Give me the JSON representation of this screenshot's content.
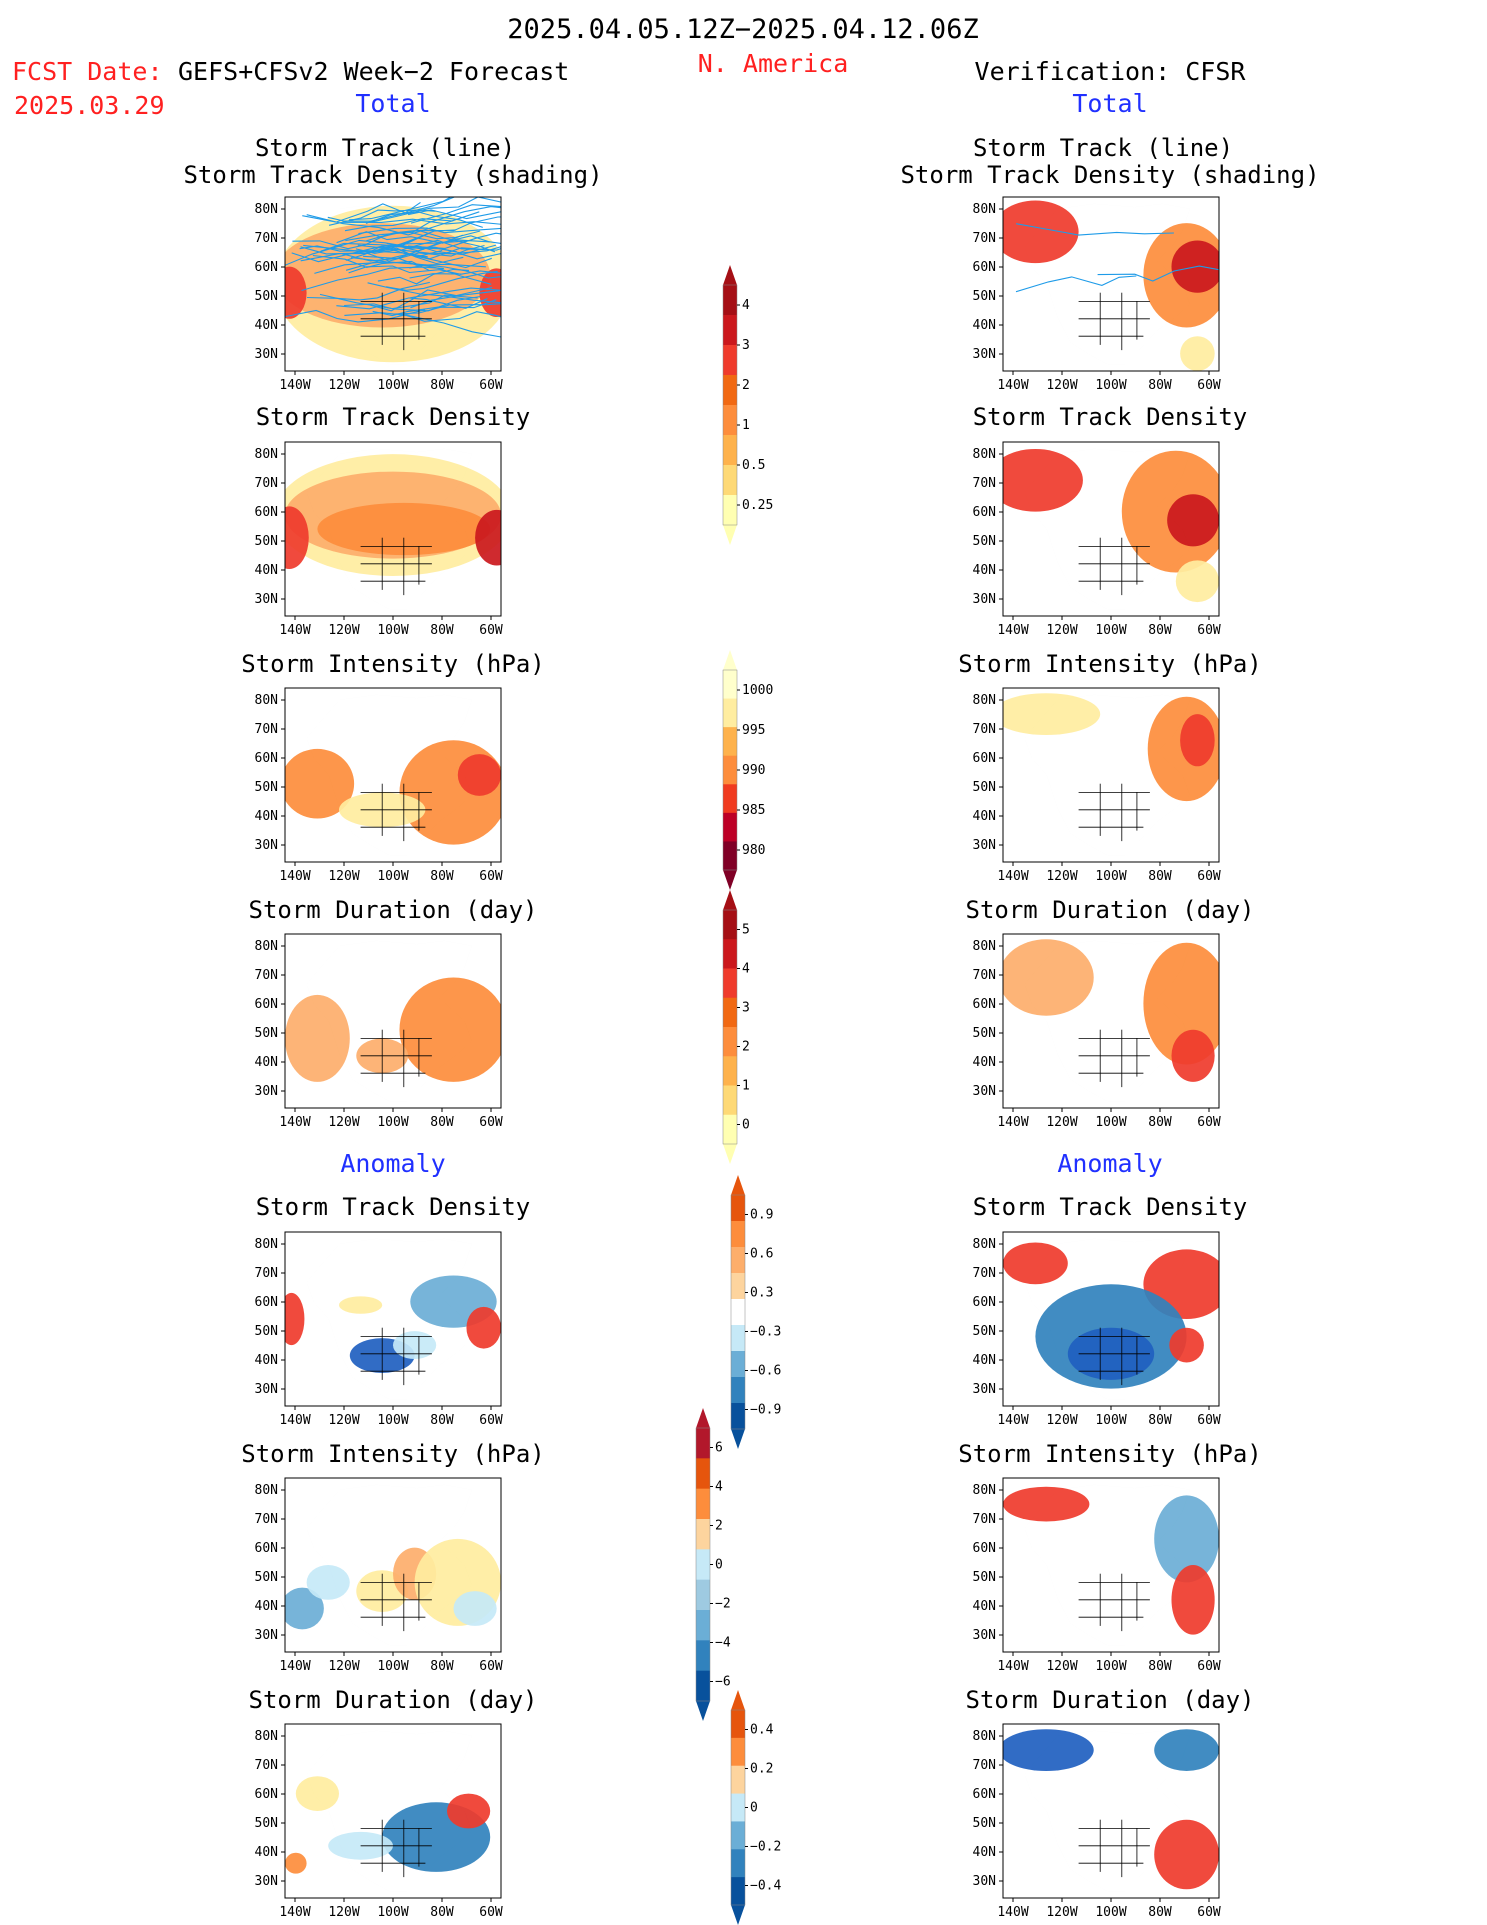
{
  "header": {
    "title": "2025.04.05.12Z−2025.04.12.06Z",
    "region": "N. America",
    "fcst_label": "FCST Date:",
    "fcst_date": "2025.03.29",
    "model": "GEFS+CFSv2 Week−2 Forecast",
    "verification": "Verification: CFSR"
  },
  "sections": {
    "total": "Total",
    "anomaly": "Anomaly"
  },
  "panel_titles": {
    "track_line": "Storm Track (line)",
    "track_shading": "Storm Track Density (shading)",
    "density": "Storm Track Density",
    "intensity": "Storm Intensity (hPa)",
    "duration": "Storm Duration (day)"
  },
  "axes": {
    "lat_ticks": [
      "80N",
      "70N",
      "60N",
      "50N",
      "40N",
      "30N"
    ],
    "lon_ticks": [
      "140W",
      "120W",
      "100W",
      "80W",
      "60W"
    ]
  },
  "colorbars": [
    {
      "name": "total-density",
      "labels": [
        "4",
        "3",
        "2",
        "1",
        "0.5",
        "0.25"
      ],
      "colors": [
        "#a50f15",
        "#cb181d",
        "#ef3b2c",
        "#f16913",
        "#fd8d3c",
        "#feb24c",
        "#fed976",
        "#ffffb2"
      ]
    },
    {
      "name": "total-intensity",
      "labels": [
        "1000",
        "995",
        "990",
        "985",
        "980"
      ],
      "colors": [
        "#ffffcc",
        "#ffeda0",
        "#feb24c",
        "#fd8d3c",
        "#f03b20",
        "#bd0026",
        "#800026"
      ]
    },
    {
      "name": "total-duration",
      "labels": [
        "5",
        "4",
        "3",
        "2",
        "1",
        "0"
      ],
      "colors": [
        "#a50f15",
        "#cb181d",
        "#ef3b2c",
        "#f16913",
        "#fd8d3c",
        "#feb24c",
        "#fed976",
        "#ffffb2"
      ]
    },
    {
      "name": "anom-density",
      "labels": [
        "0.9",
        "0.6",
        "0.3",
        "−0.3",
        "−0.6",
        "−0.9"
      ],
      "colors": [
        "#e6550d",
        "#fd8d3c",
        "#fdae6b",
        "#fdd49e",
        "#ffffff",
        "#c6e9f7",
        "#6baed6",
        "#3182bd",
        "#08519c"
      ]
    },
    {
      "name": "anom-intensity",
      "labels": [
        "6",
        "4",
        "2",
        "0",
        "−2",
        "−4",
        "−6"
      ],
      "colors": [
        "#b2182b",
        "#e6550d",
        "#fd8d3c",
        "#fdd49e",
        "#c6e9f7",
        "#9ecae1",
        "#6baed6",
        "#3182bd",
        "#08519c"
      ]
    },
    {
      "name": "anom-duration",
      "labels": [
        "0.4",
        "0.2",
        "0",
        "−0.2",
        "−0.4"
      ],
      "colors": [
        "#e6550d",
        "#fd8d3c",
        "#fdd49e",
        "#c6e9f7",
        "#6baed6",
        "#3182bd",
        "#08519c"
      ]
    }
  ],
  "colors": {
    "title_black": "#000000",
    "title_red": "#ff2020",
    "section_blue": "#2030ff"
  }
}
